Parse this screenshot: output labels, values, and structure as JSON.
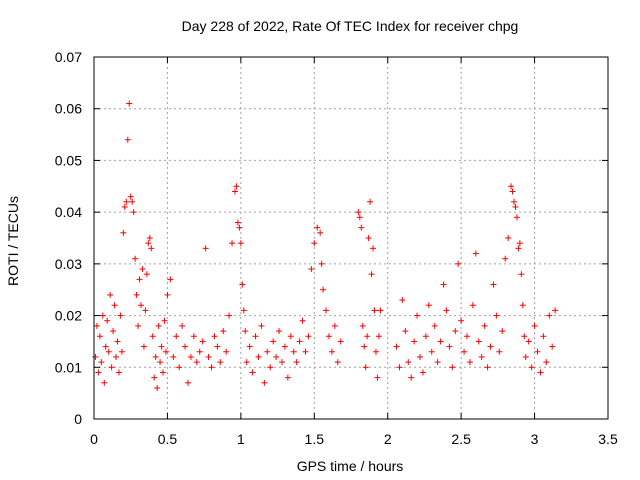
{
  "chart_data": {
    "type": "scatter",
    "title": "Day 228 of 2022, Rate Of TEC Index for receiver chpg",
    "xlabel": "GPS time / hours",
    "ylabel": "ROTI / TECUs",
    "xlim": [
      0,
      3.5
    ],
    "ylim": [
      0,
      0.07
    ],
    "xticks": [
      0,
      0.5,
      1,
      1.5,
      2,
      2.5,
      3,
      3.5
    ],
    "xtick_labels": [
      "0",
      "0.5",
      "1",
      "1.5",
      "2",
      "2.5",
      "3",
      "3.5"
    ],
    "yticks": [
      0,
      0.01,
      0.02,
      0.03,
      0.04,
      0.05,
      0.06,
      0.07
    ],
    "ytick_labels": [
      "0",
      "0.01",
      "0.02",
      "0.03",
      "0.04",
      "0.05",
      "0.06",
      "0.07"
    ],
    "grid": true,
    "marker": "+",
    "color": "#ff0000",
    "series": [
      {
        "points": [
          [
            0.01,
            0.012
          ],
          [
            0.02,
            0.018
          ],
          [
            0.03,
            0.009
          ],
          [
            0.04,
            0.016
          ],
          [
            0.05,
            0.011
          ],
          [
            0.06,
            0.02
          ],
          [
            0.07,
            0.007
          ],
          [
            0.08,
            0.014
          ],
          [
            0.09,
            0.019
          ],
          [
            0.1,
            0.013
          ],
          [
            0.11,
            0.024
          ],
          [
            0.12,
            0.01
          ],
          [
            0.13,
            0.017
          ],
          [
            0.14,
            0.022
          ],
          [
            0.15,
            0.012
          ],
          [
            0.16,
            0.015
          ],
          [
            0.17,
            0.009
          ],
          [
            0.18,
            0.02
          ],
          [
            0.19,
            0.013
          ],
          [
            0.2,
            0.036
          ],
          [
            0.21,
            0.041
          ],
          [
            0.22,
            0.042
          ],
          [
            0.23,
            0.054
          ],
          [
            0.24,
            0.061
          ],
          [
            0.25,
            0.043
          ],
          [
            0.26,
            0.042
          ],
          [
            0.27,
            0.04
          ],
          [
            0.28,
            0.031
          ],
          [
            0.29,
            0.024
          ],
          [
            0.3,
            0.018
          ],
          [
            0.31,
            0.027
          ],
          [
            0.32,
            0.022
          ],
          [
            0.33,
            0.029
          ],
          [
            0.34,
            0.014
          ],
          [
            0.35,
            0.021
          ],
          [
            0.36,
            0.028
          ],
          [
            0.37,
            0.034
          ],
          [
            0.38,
            0.035
          ],
          [
            0.39,
            0.033
          ],
          [
            0.4,
            0.016
          ],
          [
            0.41,
            0.008
          ],
          [
            0.42,
            0.012
          ],
          [
            0.43,
            0.006
          ],
          [
            0.44,
            0.018
          ],
          [
            0.45,
            0.011
          ],
          [
            0.46,
            0.014
          ],
          [
            0.47,
            0.009
          ],
          [
            0.48,
            0.019
          ],
          [
            0.49,
            0.013
          ],
          [
            0.5,
            0.024
          ],
          [
            0.52,
            0.027
          ],
          [
            0.54,
            0.012
          ],
          [
            0.56,
            0.016
          ],
          [
            0.58,
            0.01
          ],
          [
            0.6,
            0.018
          ],
          [
            0.62,
            0.014
          ],
          [
            0.64,
            0.007
          ],
          [
            0.66,
            0.012
          ],
          [
            0.68,
            0.016
          ],
          [
            0.7,
            0.011
          ],
          [
            0.72,
            0.013
          ],
          [
            0.74,
            0.015
          ],
          [
            0.76,
            0.033
          ],
          [
            0.78,
            0.012
          ],
          [
            0.8,
            0.01
          ],
          [
            0.82,
            0.016
          ],
          [
            0.84,
            0.014
          ],
          [
            0.86,
            0.011
          ],
          [
            0.88,
            0.017
          ],
          [
            0.9,
            0.013
          ],
          [
            0.92,
            0.02
          ],
          [
            0.94,
            0.034
          ],
          [
            0.96,
            0.044
          ],
          [
            0.97,
            0.045
          ],
          [
            0.98,
            0.038
          ],
          [
            0.99,
            0.037
          ],
          [
            1.0,
            0.034
          ],
          [
            1.01,
            0.026
          ],
          [
            1.02,
            0.021
          ],
          [
            1.03,
            0.017
          ],
          [
            1.04,
            0.011
          ],
          [
            1.06,
            0.014
          ],
          [
            1.08,
            0.009
          ],
          [
            1.1,
            0.016
          ],
          [
            1.12,
            0.012
          ],
          [
            1.14,
            0.018
          ],
          [
            1.16,
            0.007
          ],
          [
            1.18,
            0.013
          ],
          [
            1.2,
            0.01
          ],
          [
            1.22,
            0.015
          ],
          [
            1.24,
            0.012
          ],
          [
            1.26,
            0.017
          ],
          [
            1.28,
            0.011
          ],
          [
            1.3,
            0.014
          ],
          [
            1.32,
            0.008
          ],
          [
            1.34,
            0.016
          ],
          [
            1.36,
            0.013
          ],
          [
            1.38,
            0.011
          ],
          [
            1.4,
            0.015
          ],
          [
            1.42,
            0.019
          ],
          [
            1.44,
            0.013
          ],
          [
            1.46,
            0.016
          ],
          [
            1.48,
            0.029
          ],
          [
            1.5,
            0.034
          ],
          [
            1.52,
            0.037
          ],
          [
            1.54,
            0.036
          ],
          [
            1.55,
            0.03
          ],
          [
            1.56,
            0.025
          ],
          [
            1.58,
            0.021
          ],
          [
            1.6,
            0.016
          ],
          [
            1.62,
            0.013
          ],
          [
            1.64,
            0.018
          ],
          [
            1.66,
            0.011
          ],
          [
            1.68,
            0.015
          ],
          [
            1.8,
            0.04
          ],
          [
            1.81,
            0.039
          ],
          [
            1.82,
            0.037
          ],
          [
            1.83,
            0.018
          ],
          [
            1.84,
            0.014
          ],
          [
            1.85,
            0.01
          ],
          [
            1.86,
            0.016
          ],
          [
            1.87,
            0.035
          ],
          [
            1.88,
            0.042
          ],
          [
            1.89,
            0.028
          ],
          [
            1.9,
            0.033
          ],
          [
            1.91,
            0.021
          ],
          [
            1.92,
            0.013
          ],
          [
            1.93,
            0.008
          ],
          [
            1.94,
            0.016
          ],
          [
            1.95,
            0.021
          ],
          [
            2.06,
            0.014
          ],
          [
            2.08,
            0.01
          ],
          [
            2.1,
            0.023
          ],
          [
            2.12,
            0.017
          ],
          [
            2.14,
            0.011
          ],
          [
            2.16,
            0.008
          ],
          [
            2.18,
            0.015
          ],
          [
            2.2,
            0.02
          ],
          [
            2.22,
            0.012
          ],
          [
            2.24,
            0.009
          ],
          [
            2.26,
            0.016
          ],
          [
            2.28,
            0.022
          ],
          [
            2.3,
            0.013
          ],
          [
            2.32,
            0.018
          ],
          [
            2.34,
            0.011
          ],
          [
            2.36,
            0.015
          ],
          [
            2.38,
            0.026
          ],
          [
            2.4,
            0.021
          ],
          [
            2.42,
            0.014
          ],
          [
            2.44,
            0.01
          ],
          [
            2.46,
            0.017
          ],
          [
            2.48,
            0.03
          ],
          [
            2.5,
            0.019
          ],
          [
            2.52,
            0.013
          ],
          [
            2.54,
            0.016
          ],
          [
            2.56,
            0.011
          ],
          [
            2.58,
            0.022
          ],
          [
            2.6,
            0.032
          ],
          [
            2.62,
            0.015
          ],
          [
            2.64,
            0.012
          ],
          [
            2.66,
            0.018
          ],
          [
            2.68,
            0.01
          ],
          [
            2.7,
            0.014
          ],
          [
            2.72,
            0.026
          ],
          [
            2.74,
            0.02
          ],
          [
            2.76,
            0.013
          ],
          [
            2.78,
            0.017
          ],
          [
            2.8,
            0.031
          ],
          [
            2.82,
            0.035
          ],
          [
            2.84,
            0.045
          ],
          [
            2.85,
            0.044
          ],
          [
            2.86,
            0.042
          ],
          [
            2.87,
            0.041
          ],
          [
            2.88,
            0.039
          ],
          [
            2.89,
            0.033
          ],
          [
            2.9,
            0.034
          ],
          [
            2.91,
            0.028
          ],
          [
            2.92,
            0.022
          ],
          [
            2.93,
            0.016
          ],
          [
            2.94,
            0.012
          ],
          [
            2.96,
            0.015
          ],
          [
            2.98,
            0.01
          ],
          [
            3.0,
            0.018
          ],
          [
            3.02,
            0.013
          ],
          [
            3.04,
            0.009
          ],
          [
            3.06,
            0.016
          ],
          [
            3.08,
            0.011
          ],
          [
            3.1,
            0.02
          ],
          [
            3.12,
            0.014
          ],
          [
            3.14,
            0.021
          ]
        ]
      }
    ]
  }
}
